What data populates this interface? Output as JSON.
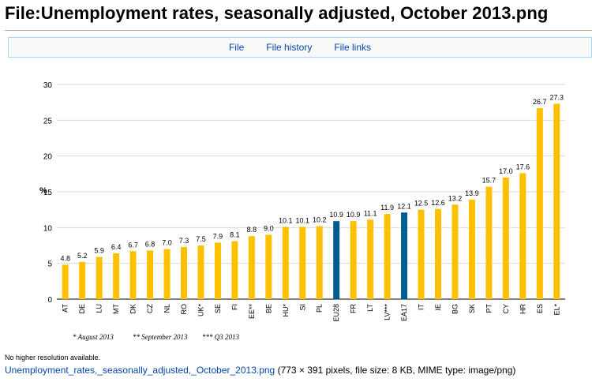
{
  "page": {
    "title": "File:Unemployment rates, seasonally adjusted, October 2013.png"
  },
  "tabs": [
    {
      "label": "File"
    },
    {
      "label": "File history"
    },
    {
      "label": "File links"
    }
  ],
  "colors": {
    "bar": "#ffc000",
    "highlight": "#005b8f",
    "axis": "#000000",
    "grid": "#d9d9d9",
    "link": "#0645ad"
  },
  "chart_data": {
    "type": "bar",
    "title": "",
    "xlabel": "",
    "ylabel": "%",
    "ylim": [
      0,
      30
    ],
    "yticks": [
      0,
      5,
      10,
      15,
      20,
      25,
      30
    ],
    "grid": true,
    "categories": [
      "AT",
      "DE",
      "LU",
      "MT",
      "DK",
      "CZ",
      "NL",
      "RO",
      "UK*",
      "SE",
      "FI",
      "EE**",
      "BE",
      "HU*",
      "SI",
      "PL",
      "EU28",
      "FR",
      "LT",
      "LV***",
      "EA17",
      "IT",
      "IE",
      "BG",
      "SK",
      "PT",
      "CY",
      "HR",
      "ES",
      "EL*"
    ],
    "values": [
      4.8,
      5.2,
      5.9,
      6.4,
      6.7,
      6.8,
      7.0,
      7.3,
      7.5,
      7.9,
      8.1,
      8.8,
      9.0,
      10.1,
      10.1,
      10.2,
      10.9,
      10.9,
      11.1,
      11.9,
      12.1,
      12.5,
      12.6,
      13.2,
      13.9,
      15.7,
      17.0,
      17.6,
      26.7,
      27.3
    ],
    "value_labels": [
      "4.8",
      "5.2",
      "5.9",
      "6.4",
      "6.7",
      "6.8",
      "7.0",
      "7.3",
      "7.5",
      "7.9",
      "8.1",
      "8.8",
      "9.0",
      "10.1",
      "10.1",
      "10.2",
      "10.9",
      "10.9",
      "11.1",
      "11.9",
      "12.1",
      "12.5",
      "12.6",
      "13.2",
      "13.9",
      "15.7",
      "17.0",
      "17.6",
      "26.7",
      "27.3"
    ],
    "highlighted": [
      "EU28",
      "EA17"
    ],
    "footnotes": [
      "* August 2013",
      "** September 2013",
      "*** Q3 2013"
    ]
  },
  "footer": {
    "resolution_note": "No higher resolution available.",
    "file_link": "Unemployment_rates,_seasonally_adjusted,_October_2013.png",
    "file_meta": " (773 × 391 pixels, file size: 8 KB, MIME type: image/png)"
  }
}
